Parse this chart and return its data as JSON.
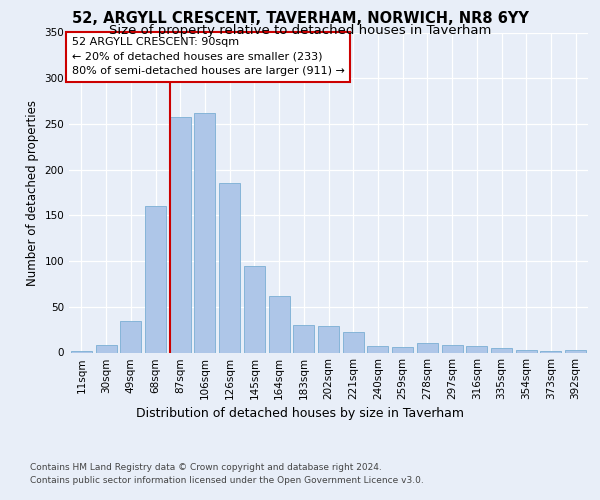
{
  "title1": "52, ARGYLL CRESCENT, TAVERHAM, NORWICH, NR8 6YY",
  "title2": "Size of property relative to detached houses in Taverham",
  "xlabel": "Distribution of detached houses by size in Taverham",
  "ylabel": "Number of detached properties",
  "categories": [
    "11sqm",
    "30sqm",
    "49sqm",
    "68sqm",
    "87sqm",
    "106sqm",
    "126sqm",
    "145sqm",
    "164sqm",
    "183sqm",
    "202sqm",
    "221sqm",
    "240sqm",
    "259sqm",
    "278sqm",
    "297sqm",
    "316sqm",
    "335sqm",
    "354sqm",
    "373sqm",
    "392sqm"
  ],
  "values": [
    2,
    8,
    35,
    160,
    258,
    262,
    185,
    95,
    62,
    30,
    29,
    22,
    7,
    6,
    10,
    8,
    7,
    5,
    3,
    2,
    3
  ],
  "bar_color": "#aec6e8",
  "bar_edge_color": "#7bafd4",
  "vline_index": 4,
  "vline_color": "#cc0000",
  "annotation_line1": "52 ARGYLL CRESCENT: 90sqm",
  "annotation_line2": "← 20% of detached houses are smaller (233)",
  "annotation_line3": "80% of semi-detached houses are larger (911) →",
  "annotation_box_color": "#ffffff",
  "annotation_box_edge_color": "#cc0000",
  "bg_color": "#e8eef8",
  "plot_bg_color": "#e8eef8",
  "footnote1": "Contains HM Land Registry data © Crown copyright and database right 2024.",
  "footnote2": "Contains public sector information licensed under the Open Government Licence v3.0.",
  "ylim": [
    0,
    350
  ],
  "title1_fontsize": 10.5,
  "title2_fontsize": 9.5,
  "xlabel_fontsize": 9,
  "ylabel_fontsize": 8.5,
  "tick_fontsize": 7.5,
  "annotation_fontsize": 8.0,
  "footnote_fontsize": 6.5
}
